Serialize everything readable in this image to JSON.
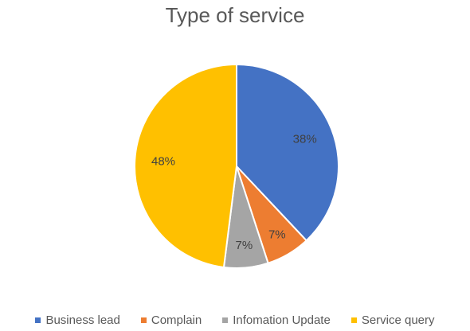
{
  "chart_data": {
    "type": "pie",
    "title": "Type of service",
    "categories": [
      "Business lead",
      "Complain",
      "Infomation Update",
      "Service query"
    ],
    "values": [
      38,
      7,
      7,
      48
    ],
    "labels": [
      "38%",
      "7%",
      "7%",
      "48%"
    ],
    "colors": [
      "#4472C4",
      "#ED7D31",
      "#A5A5A5",
      "#FFC000"
    ],
    "legend_position": "bottom"
  }
}
